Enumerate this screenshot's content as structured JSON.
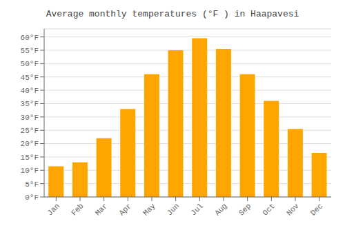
{
  "chart_data": {
    "type": "bar",
    "title": "Average monthly temperatures (°F ) in Haapavesi",
    "categories": [
      "Jan",
      "Feb",
      "Mar",
      "Apr",
      "May",
      "Jun",
      "Jul",
      "Aug",
      "Sep",
      "Oct",
      "Nov",
      "Dec"
    ],
    "values": [
      11.5,
      13,
      22,
      33,
      46,
      55,
      59.5,
      55.5,
      46,
      36,
      25.5,
      16.5
    ],
    "color": "#FFA500",
    "ylim": [
      0,
      63
    ],
    "yticks": [
      {
        "value": 0,
        "label": "0°F"
      },
      {
        "value": 5,
        "label": "5°F"
      },
      {
        "value": 10,
        "label": "10°F"
      },
      {
        "value": 15,
        "label": "15°F"
      },
      {
        "value": 20,
        "label": "20°F"
      },
      {
        "value": 25,
        "label": "25°F"
      },
      {
        "value": 30,
        "label": "30°F"
      },
      {
        "value": 35,
        "label": "35°F"
      },
      {
        "value": 40,
        "label": "40°F"
      },
      {
        "value": 45,
        "label": "45°F"
      },
      {
        "value": 50,
        "label": "50°F"
      },
      {
        "value": 55,
        "label": "55°F"
      },
      {
        "value": 60,
        "label": "60°F"
      }
    ],
    "grid": true
  }
}
